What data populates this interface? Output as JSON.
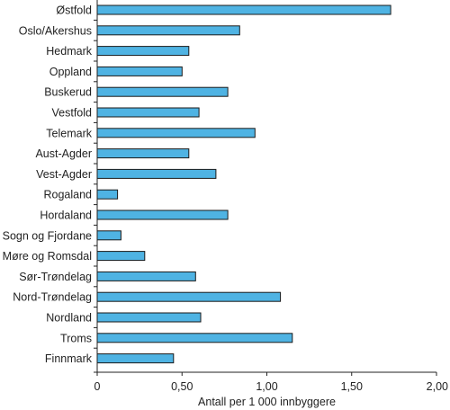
{
  "chart_data": {
    "type": "bar",
    "orientation": "horizontal",
    "categories": [
      "Østfold",
      "Oslo/Akershus",
      "Hedmark",
      "Oppland",
      "Buskerud",
      "Vestfold",
      "Telemark",
      "Aust-Agder",
      "Vest-Agder",
      "Rogaland",
      "Hordaland",
      "Sogn og Fjordane",
      "Møre og Romsdal",
      "Sør-Trøndelag",
      "Nord-Trøndelag",
      "Nordland",
      "Troms",
      "Finnmark"
    ],
    "values": [
      1.73,
      0.84,
      0.54,
      0.5,
      0.77,
      0.6,
      0.93,
      0.54,
      0.7,
      0.12,
      0.77,
      0.14,
      0.28,
      0.58,
      1.08,
      0.61,
      1.15,
      0.45
    ],
    "xlabel": "Antall per 1 000 innbyggere",
    "xlim": [
      0,
      2.0
    ],
    "xticks": [
      0,
      0.5,
      1.0,
      1.5,
      2.0
    ],
    "xtick_labels": [
      "0",
      "0,50",
      "1,00",
      "1,50",
      "2,00"
    ],
    "grid": false,
    "bar_color": "#4fb3e3",
    "edge_color": "#1a1a1a"
  }
}
